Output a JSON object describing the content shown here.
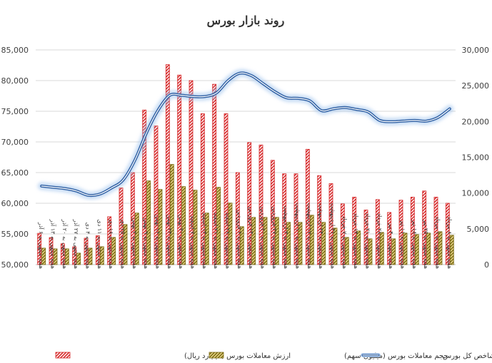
{
  "chart_data": {
    "type": "bar",
    "title": "روند بازار بورس",
    "categories": [
      "هفته منتهی به ۶ آذر",
      "هفته منتهی به ۱۳ آذر",
      "هفته منتهی به ۲۰ آذر",
      "هفته منتهی به ۲۷ آذر",
      "هفته منتهی به ۴ دی",
      "هفته منتهی به ۱۱ دی",
      "هفته منتهی به ۱۸ دی",
      "هفته منتهی به ۲۵ دی",
      "هفته منتهی به ۲ بهمن",
      "هفته منتهی به ۹ بهمن",
      "هفته منتهی به ۱۶ بهمن",
      "هفته منتهی به ۲۳ بهمن",
      "هفته منتهی به ۳۰ بهمن",
      "هفته منتهی به ۷ اسفند",
      "هفته منتهی به ۱۴ اسفند",
      "هفته منتهی به ۲۱ اسفند",
      "هفته منتهی به ۲۸ اسفند",
      "هفته منتهی به ۶ فروردین",
      "هفته منتهی به ۱۳ فروردین",
      "هفته منتهی به ۲۰ فروردین",
      "هفته منتهی به ۲۷ فروردین",
      "هفته منتهی به ۳ اردیبهشت",
      "هفته منتهی به ۱۰ اردیبهشت",
      "هفته منتهی به ۱۷ اردیبهشت",
      "هفته منتهی به ۲۴ اردیبهشت",
      "هفته منتهی به ۳۱ اردیبهشت",
      "هفته منتهی به ۷ خرداد",
      "هفته منتهی به ۱۴ خرداد",
      "هفته منتهی به ۲۱ خرداد",
      "هفته منتهی به ۲۸ خرداد",
      "هفته منتهی به ۴ تیر",
      "هفته منتهی به ۱۱ تیر",
      "هفته منتهی به ۱۸ تیر",
      "هفته منتهی به ۲۵ تیر",
      "هفته منتهی به ۱ مرداد",
      "هفته منتهی به ۸ مرداد"
    ],
    "left_axis": {
      "min": 50000,
      "max": 85000,
      "step": 5000
    },
    "right_axis": {
      "min": 0,
      "max": 30000,
      "step": 5000
    },
    "left_tick_labels": [
      "50,000",
      "55,000",
      "60,000",
      "65,000",
      "70,000",
      "75,000",
      "80,000",
      "85,000"
    ],
    "right_tick_labels": [
      "0",
      "5,000",
      "10,000",
      "15,000",
      "20,000",
      "25,000",
      "30,000"
    ],
    "series": [
      {
        "name": "ارزش معاملات بورس (میلیارد ریال)",
        "type": "bar",
        "axis": "left",
        "color": "#d62728",
        "values": [
          55100,
          54400,
          53400,
          52900,
          54300,
          54700,
          57800,
          62500,
          65000,
          75200,
          72600,
          82600,
          80900,
          80000,
          74600,
          79400,
          74600,
          65000,
          69900,
          69500,
          67000,
          64800,
          64800,
          68800,
          64500,
          63200,
          59900,
          61000,
          58900,
          60600,
          58500,
          60500,
          61000,
          62000,
          61000,
          60000
        ]
      },
      {
        "name": "حجم معاملات بورس (میلیون سهم)",
        "type": "bar",
        "axis": "right",
        "color": "#8b7a1e",
        "values": [
          2300,
          2200,
          2200,
          1600,
          2300,
          2500,
          3800,
          5600,
          7200,
          11700,
          10500,
          14000,
          10900,
          10400,
          7200,
          10800,
          8600,
          5300,
          6600,
          6600,
          6600,
          5900,
          5900,
          6900,
          5900,
          5100,
          3800,
          4700,
          3600,
          4500,
          3600,
          4400,
          4200,
          4400,
          4600,
          4100
        ]
      },
      {
        "name": "شاخص کل بورس",
        "type": "line",
        "axis": "left",
        "color": "#2e5fa3",
        "values": [
          62800,
          62600,
          62400,
          62000,
          61300,
          61500,
          62500,
          63800,
          67000,
          71500,
          75200,
          77600,
          77600,
          77400,
          77400,
          78000,
          80000,
          81200,
          80800,
          79500,
          78200,
          77200,
          77100,
          76700,
          75100,
          75400,
          75600,
          75300,
          74900,
          73500,
          73300,
          73400,
          73500,
          73400,
          74000,
          75400
        ]
      }
    ],
    "grid": true,
    "legend_position": "bottom"
  }
}
